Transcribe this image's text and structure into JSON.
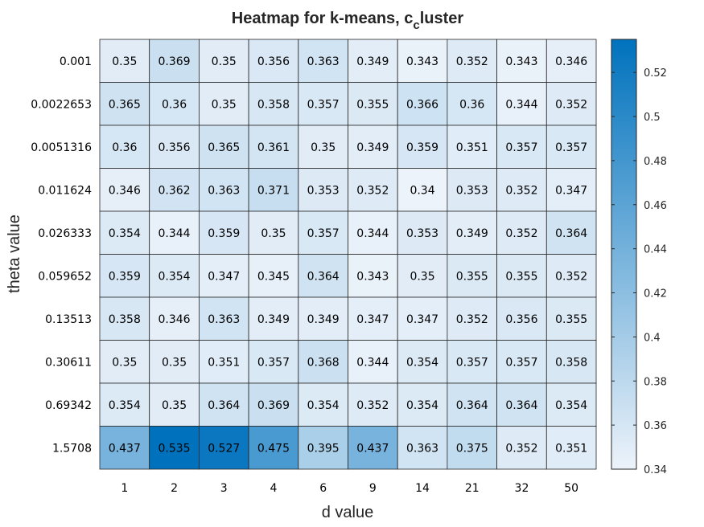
{
  "chart_data": {
    "type": "heatmap",
    "title": {
      "main": "Heatmap for k-means, c",
      "sub": "c",
      "rest": "luster"
    },
    "xlabel": "d value",
    "ylabel": "theta value",
    "x": [
      "1",
      "2",
      "3",
      "4",
      "6",
      "9",
      "14",
      "21",
      "32",
      "50"
    ],
    "y": [
      "0.001",
      "0.0022653",
      "0.0051316",
      "0.011624",
      "0.026333",
      "0.059652",
      "0.13513",
      "0.30611",
      "0.69342",
      "1.5708"
    ],
    "values": [
      [
        0.35,
        0.369,
        0.35,
        0.356,
        0.363,
        0.349,
        0.343,
        0.352,
        0.343,
        0.346
      ],
      [
        0.365,
        0.36,
        0.35,
        0.358,
        0.357,
        0.355,
        0.366,
        0.36,
        0.344,
        0.352
      ],
      [
        0.36,
        0.356,
        0.365,
        0.361,
        0.35,
        0.349,
        0.359,
        0.351,
        0.357,
        0.357
      ],
      [
        0.346,
        0.362,
        0.363,
        0.371,
        0.353,
        0.352,
        0.34,
        0.353,
        0.352,
        0.347
      ],
      [
        0.354,
        0.344,
        0.359,
        0.35,
        0.357,
        0.344,
        0.353,
        0.349,
        0.352,
        0.364
      ],
      [
        0.359,
        0.354,
        0.347,
        0.345,
        0.364,
        0.343,
        0.35,
        0.355,
        0.355,
        0.352
      ],
      [
        0.358,
        0.346,
        0.363,
        0.349,
        0.349,
        0.347,
        0.347,
        0.352,
        0.356,
        0.355
      ],
      [
        0.35,
        0.35,
        0.351,
        0.357,
        0.368,
        0.344,
        0.354,
        0.357,
        0.357,
        0.358
      ],
      [
        0.354,
        0.35,
        0.364,
        0.369,
        0.354,
        0.352,
        0.354,
        0.364,
        0.364,
        0.354
      ],
      [
        0.437,
        0.535,
        0.527,
        0.475,
        0.395,
        0.437,
        0.363,
        0.375,
        0.352,
        0.351
      ]
    ],
    "colorbar": {
      "range": [
        0.34,
        0.535
      ],
      "ticks": [
        "0.34",
        "0.36",
        "0.38",
        "0.4",
        "0.42",
        "0.44",
        "0.46",
        "0.48",
        "0.5",
        "0.52"
      ],
      "color_low": "#EDF3FA",
      "color_high": "#0072BD"
    },
    "cell_label_color_light": "#ffffff",
    "cell_label_color_dark": "#000000",
    "grid_color": "#262626"
  }
}
